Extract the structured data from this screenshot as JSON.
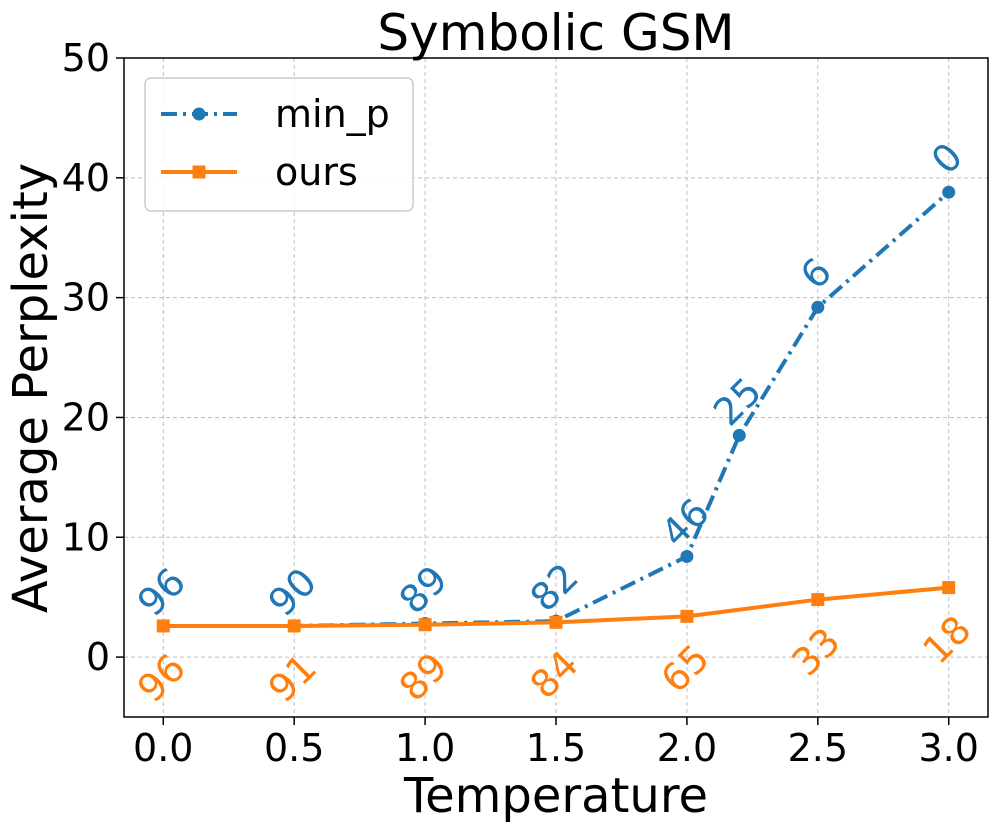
{
  "chart_data": {
    "type": "line",
    "title": "Symbolic GSM",
    "xlabel": "Temperature",
    "ylabel": "Average Perplexity",
    "xlim": [
      -0.15,
      3.15
    ],
    "ylim": [
      -5,
      50
    ],
    "xticks": [
      0.0,
      0.5,
      1.0,
      1.5,
      2.0,
      2.5,
      3.0
    ],
    "xtick_labels": [
      "0.0",
      "0.5",
      "1.0",
      "1.5",
      "2.0",
      "2.5",
      "3.0"
    ],
    "yticks": [
      0,
      10,
      20,
      30,
      40,
      50
    ],
    "ytick_labels": [
      "0",
      "10",
      "20",
      "30",
      "40",
      "50"
    ],
    "grid": true,
    "legend_position": "top-left",
    "series": [
      {
        "name": "min_p",
        "color": "#1f77b4",
        "marker": "circle",
        "linestyle": "dashdot",
        "x": [
          0.0,
          0.5,
          1.0,
          1.5,
          2.0,
          2.2,
          2.5,
          3.0
        ],
        "y": [
          2.6,
          2.6,
          2.8,
          3.0,
          8.4,
          18.5,
          29.2,
          38.8
        ],
        "annotations": [
          "96",
          "90",
          "89",
          "82",
          "46",
          "25",
          "6",
          "0"
        ]
      },
      {
        "name": "ours",
        "color": "#ff7f0e",
        "marker": "square",
        "linestyle": "solid",
        "x": [
          0.0,
          0.5,
          1.0,
          1.5,
          2.0,
          2.5,
          3.0
        ],
        "y": [
          2.6,
          2.6,
          2.7,
          2.9,
          3.4,
          4.8,
          5.8
        ],
        "annotations": [
          "96",
          "91",
          "89",
          "84",
          "65",
          "33",
          "18"
        ]
      }
    ]
  }
}
